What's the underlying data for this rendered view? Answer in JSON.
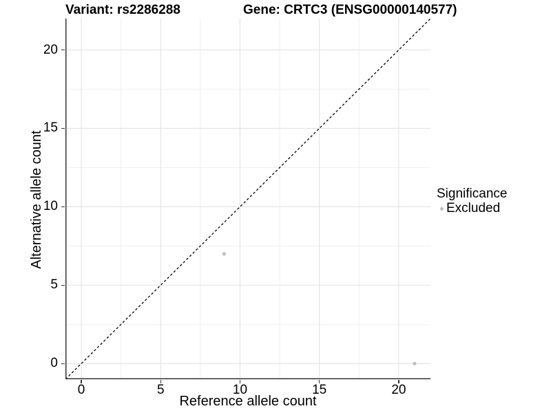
{
  "figure": {
    "title_left": "Variant: rs2286288",
    "title_right": "Gene: CRTC3 (ENSG00000140577)"
  },
  "axes": {
    "x_label": "Reference allele count",
    "y_label": "Alternative allele count",
    "x_tick_labels": [
      "0",
      "5",
      "10",
      "15",
      "20"
    ],
    "y_tick_labels": [
      "0",
      "5",
      "10",
      "15",
      "20"
    ]
  },
  "legend": {
    "title": "Significance",
    "items": [
      {
        "label": "Excluded",
        "color": "#bfbfbf"
      }
    ]
  },
  "colors": {
    "background": "#ffffff",
    "axis_line": "#333333",
    "tick_mark": "#333333",
    "grid_major": "#e4e4e4",
    "grid_minor": "#efefef",
    "point": "#bfbfbf",
    "identity_line": "#000000",
    "text": "#000000"
  },
  "chart_data": {
    "type": "scatter",
    "title": "Variant: rs2286288  |  Gene: CRTC3 (ENSG00000140577)",
    "xlabel": "Reference allele count",
    "ylabel": "Alternative allele count",
    "xlim": [
      -1,
      22
    ],
    "ylim": [
      -1,
      22
    ],
    "x_ticks": [
      0,
      5,
      10,
      15,
      20
    ],
    "y_ticks": [
      0,
      5,
      10,
      15,
      20
    ],
    "x_minor_ticks": [
      2.5,
      7.5,
      12.5,
      17.5
    ],
    "y_minor_ticks": [
      2.5,
      7.5,
      12.5,
      17.5
    ],
    "grid": "major+minor",
    "legend_position": "right",
    "series": [
      {
        "name": "Excluded",
        "color": "#bfbfbf",
        "points": [
          {
            "x": 9,
            "y": 7
          },
          {
            "x": 21,
            "y": 0
          }
        ]
      }
    ],
    "reference_line": {
      "type": "identity",
      "style": "dashed",
      "from": {
        "x": -1,
        "y": -1
      },
      "to": {
        "x": 22,
        "y": 22
      }
    }
  }
}
